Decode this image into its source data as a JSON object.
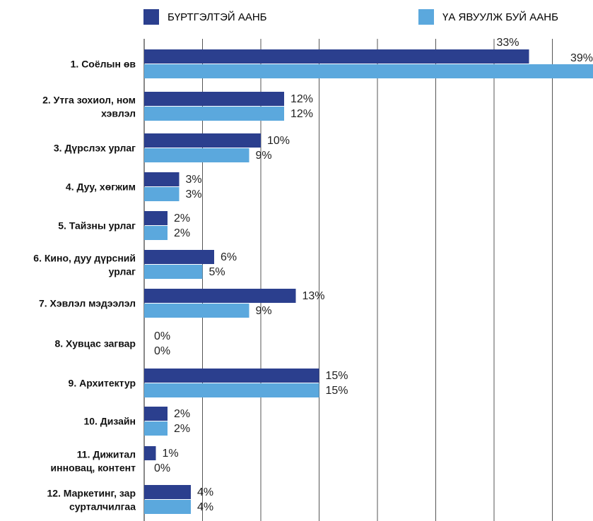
{
  "legend": {
    "registered": "БҮРТГЭЛТЭЙ ААНБ",
    "active": "ҮА ЯВУУЛЖ БУЙ ААНБ"
  },
  "colors": {
    "registered": "#2B3F8E",
    "active": "#5BA8DD",
    "grid": "#555555"
  },
  "chart_data": {
    "type": "bar",
    "orientation": "horizontal",
    "grid": true,
    "xlim": [
      0,
      38
    ],
    "categories": [
      [
        "1. Соёлын өв"
      ],
      [
        "2. Утга зохиол, ном",
        "хэвлэл"
      ],
      [
        "3. Дүрслэх урлаг"
      ],
      [
        "4. Дуу, хөгжим"
      ],
      [
        "5. Тайзны урлаг"
      ],
      [
        "6. Кино, дуу дүрсний",
        "урлаг"
      ],
      [
        "7. Хэвлэл мэдээлэл"
      ],
      [
        "8. Хувцас загвар"
      ],
      [
        "9. Архитектур"
      ],
      [
        "10. Дизайн"
      ],
      [
        "11. Дижитал",
        "инновац, контент"
      ],
      [
        "12. Маркетинг, зар",
        "сурталчилгаа"
      ]
    ],
    "series": [
      {
        "name": "БҮРТГЭЛТЭЙ ААНБ",
        "values": [
          33,
          12,
          10,
          3,
          2,
          6,
          13,
          0,
          15,
          2,
          1,
          4
        ]
      },
      {
        "name": "ҮА ЯВУУЛЖ БУЙ ААНБ",
        "values": [
          39,
          12,
          9,
          3,
          2,
          5,
          9,
          0,
          15,
          2,
          0,
          4
        ]
      }
    ],
    "value_labels": [
      [
        "33%",
        "12%",
        "10%",
        "3%",
        "2%",
        "6%",
        "13%",
        "0%",
        "15%",
        "2%",
        "1%",
        "4%"
      ],
      [
        "39%",
        "12%",
        "9%",
        "3%",
        "2%",
        "5%",
        "9%",
        "0%",
        "15%",
        "2%",
        "0%",
        "4%"
      ]
    ]
  }
}
